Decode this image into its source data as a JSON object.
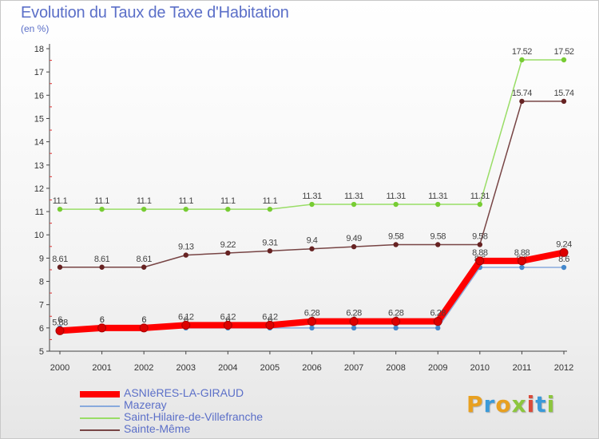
{
  "title": "Evolution du Taux de Taxe d'Habitation",
  "subtitle": "(en %)",
  "logo": {
    "letters": [
      "P",
      "r",
      "o",
      "x",
      "i",
      "t",
      "i"
    ],
    "colors": [
      "#e8a020",
      "#3a9ad9",
      "#e8a020",
      "#8cc63e",
      "#d94a3a",
      "#3a9ad9",
      "#8cc63e"
    ]
  },
  "chart_data": {
    "type": "line",
    "x": [
      "2000",
      "2001",
      "2002",
      "2003",
      "2004",
      "2005",
      "2006",
      "2007",
      "2008",
      "2009",
      "2010",
      "2011",
      "2012"
    ],
    "ylim": [
      5,
      18
    ],
    "yticks": [
      "5",
      "6",
      "7",
      "8",
      "9",
      "10",
      "11",
      "12",
      "13",
      "14",
      "15",
      "16",
      "17",
      "18"
    ],
    "grid": false,
    "legend_position": "bottom-left",
    "series": [
      {
        "name": "Saint-Hilaire-de-Villefranche",
        "color": "#99dd66",
        "marker": "#77cc33",
        "width": 1.5,
        "values": [
          11.1,
          11.1,
          11.1,
          11.1,
          11.1,
          11.1,
          11.31,
          11.31,
          11.31,
          11.31,
          11.31,
          17.52,
          17.52
        ],
        "labels": [
          "11.1",
          "11.1",
          "11.1",
          "11.1",
          "11.1",
          "11.1",
          "11.31",
          "11.31",
          "11.31",
          "11.31",
          "11.31",
          "17.52",
          "17.52"
        ]
      },
      {
        "name": "Sainte-Même",
        "color": "#774444",
        "marker": "#662222",
        "width": 1.5,
        "values": [
          8.61,
          8.61,
          8.61,
          9.13,
          9.22,
          9.31,
          9.4,
          9.49,
          9.58,
          9.58,
          9.58,
          15.74,
          15.74
        ],
        "labels": [
          "8.61",
          "8.61",
          "8.61",
          "9.13",
          "9.22",
          "9.31",
          "9.4",
          "9.49",
          "9.58",
          "9.58",
          "9.58",
          "15.74",
          "15.74"
        ]
      },
      {
        "name": "Mazeray",
        "color": "#88aadd",
        "marker": "#4488cc",
        "width": 1.5,
        "values": [
          6,
          6,
          6,
          6,
          6,
          6,
          6,
          6,
          6,
          6,
          8.6,
          8.6,
          8.6
        ],
        "labels": [
          "6",
          "6",
          "6",
          "6",
          "6",
          "6",
          "6",
          "6",
          "6",
          "6",
          "8.6",
          "8.6",
          "8.6"
        ]
      },
      {
        "name": "ASNIèRES-LA-GIRAUD",
        "color": "#ff0000",
        "marker": "#dd0000",
        "width": 8,
        "values": [
          5.88,
          6,
          6,
          6.12,
          6.12,
          6.12,
          6.28,
          6.28,
          6.28,
          6.28,
          8.88,
          8.88,
          9.24
        ],
        "labels": [
          "5.88",
          "6",
          "6",
          "6.12",
          "6.12",
          "6.12",
          "6.28",
          "6.28",
          "6.28",
          "6.28",
          "8.88",
          "8.88",
          "9.24"
        ]
      }
    ],
    "legend_order": [
      "ASNIèRES-LA-GIRAUD",
      "Mazeray",
      "Saint-Hilaire-de-Villefranche",
      "Sainte-Même"
    ]
  }
}
